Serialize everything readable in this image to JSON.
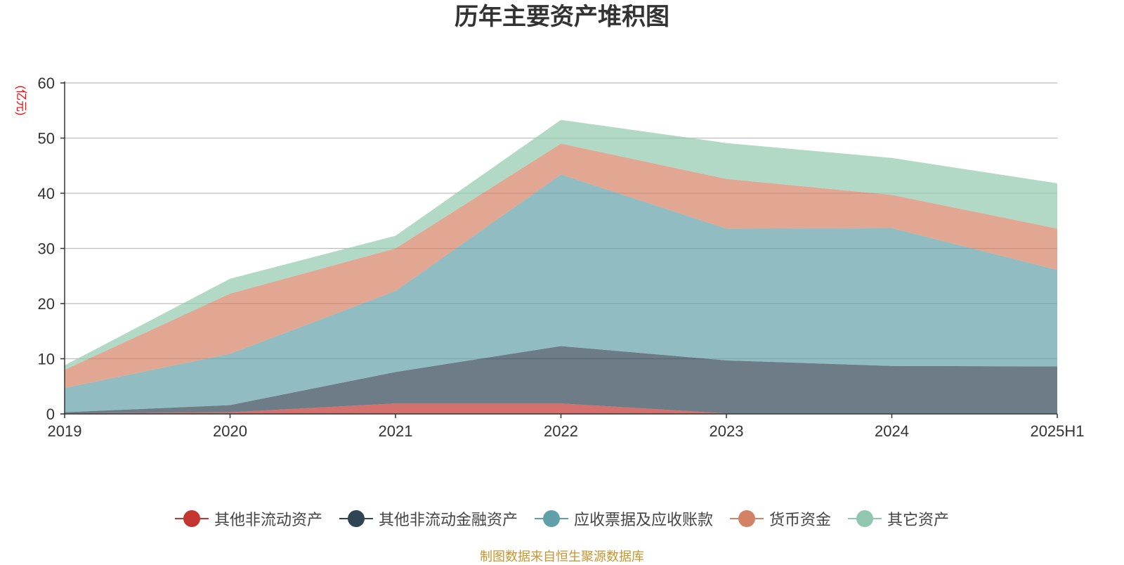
{
  "chart_data": {
    "type": "area",
    "stacked": true,
    "title": "历年主要资产堆积图",
    "ylabel": "(亿元)",
    "categories": [
      "2019",
      "2020",
      "2021",
      "2022",
      "2023",
      "2024",
      "2025H1"
    ],
    "ylim": [
      0,
      60
    ],
    "yticks": [
      0,
      10,
      20,
      30,
      40,
      50,
      60
    ],
    "grid": true,
    "legend_position": "bottom",
    "series": [
      {
        "name": "其他非流动资产",
        "color": "#c23531",
        "values": [
          0.1,
          0.3,
          1.9,
          1.9,
          0.1,
          0.1,
          0.1
        ]
      },
      {
        "name": "其他非流动金融资产",
        "color": "#2f4554",
        "values": [
          0.2,
          1.3,
          5.7,
          10.4,
          9.6,
          8.6,
          8.5
        ]
      },
      {
        "name": "应收票据及应收账款",
        "color": "#61a0a8",
        "values": [
          4.4,
          9.3,
          14.7,
          31.1,
          23.9,
          25.0,
          17.5
        ]
      },
      {
        "name": "货币资金",
        "color": "#d48265",
        "values": [
          3.3,
          10.9,
          7.7,
          5.6,
          9.0,
          6.0,
          7.5
        ]
      },
      {
        "name": "其它资产",
        "color": "#91c7ae",
        "values": [
          0.8,
          2.7,
          2.3,
          4.3,
          6.5,
          6.7,
          8.2
        ]
      }
    ]
  },
  "footer": {
    "source": "制图数据来自恒生聚源数据库"
  }
}
